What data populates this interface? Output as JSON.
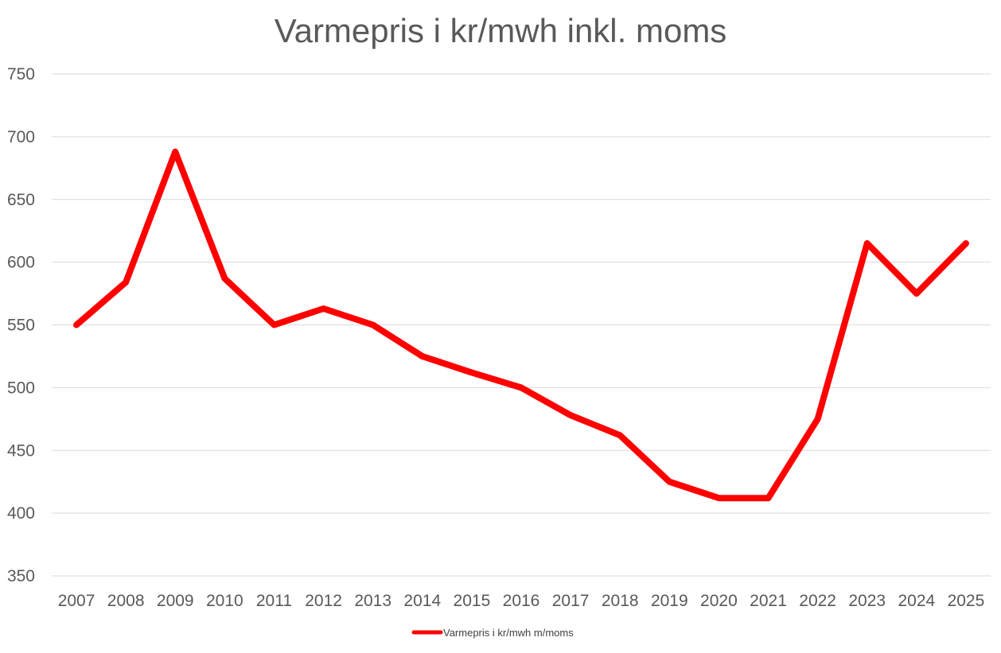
{
  "chart_data": {
    "type": "line",
    "title": "Varmepris i kr/mwh inkl. moms",
    "xlabel": "",
    "ylabel": "",
    "categories": [
      "2007",
      "2008",
      "2009",
      "2010",
      "2011",
      "2012",
      "2013",
      "2014",
      "2015",
      "2016",
      "2017",
      "2018",
      "2019",
      "2020",
      "2021",
      "2022",
      "2023",
      "2024",
      "2025"
    ],
    "series": [
      {
        "name": "Varmepris i kr/mwh m/moms",
        "color": "#ff0000",
        "values": [
          550,
          584,
          688,
          587,
          550,
          563,
          550,
          525,
          512,
          500,
          478,
          462,
          425,
          412,
          412,
          475,
          615,
          575,
          615
        ]
      }
    ],
    "ylim": [
      350,
      750
    ],
    "yticks": [
      350,
      400,
      450,
      500,
      550,
      600,
      650,
      700,
      750
    ],
    "grid": true,
    "legend_position": "bottom"
  }
}
